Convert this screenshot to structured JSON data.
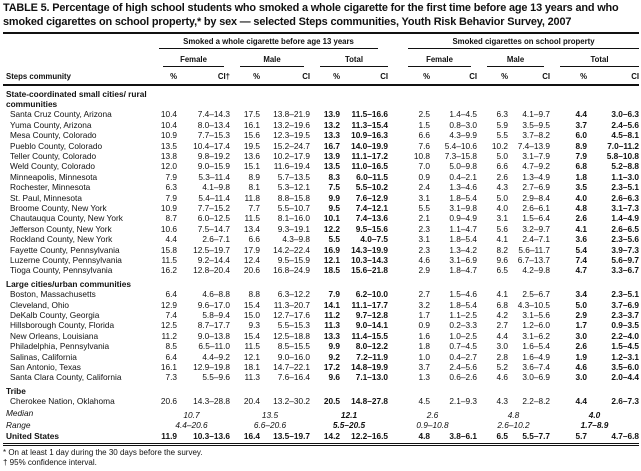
{
  "title": "TABLE 5. Percentage of high school students who smoked a whole cigarette for the first time before age 13 years and who smoked cigarettes on school property,* by sex — selected Steps communities, Youth Risk Behavior Survey, 2007",
  "header": {
    "groups": [
      "Smoked a whole cigarette before age 13 years",
      "Smoked cigarettes on school property"
    ],
    "sexes": [
      "Female",
      "Male",
      "Total",
      "Female",
      "Male",
      "Total"
    ],
    "row_label": "Steps community",
    "cols": [
      "%",
      "CI†",
      "%",
      "CI",
      "%",
      "CI",
      "%",
      "CI",
      "%",
      "CI",
      "%",
      "CI"
    ]
  },
  "sections": [
    {
      "label": "State-coordinated small cities/ rural communities",
      "rows": [
        {
          "name": "Santa Cruz County, Arizona",
          "v": [
            "10.4",
            "7.4–14.3",
            "17.5",
            "13.8–21.9",
            "13.9",
            "11.5–16.6",
            "2.5",
            "1.4–4.5",
            "6.3",
            "4.1–9.7",
            "4.4",
            "3.0–6.3"
          ]
        },
        {
          "name": "Yuma County, Arizona",
          "v": [
            "10.4",
            "8.0–13.4",
            "16.1",
            "13.2–19.6",
            "13.2",
            "11.3–15.4",
            "1.5",
            "0.8–3.0",
            "5.9",
            "3.5–9.5",
            "3.7",
            "2.4–5.6"
          ]
        },
        {
          "name": "Mesa County, Colorado",
          "v": [
            "10.9",
            "7.7–15.3",
            "15.6",
            "12.3–19.5",
            "13.3",
            "10.9–16.3",
            "6.6",
            "4.3–9.9",
            "5.5",
            "3.7–8.2",
            "6.0",
            "4.5–8.1"
          ]
        },
        {
          "name": "Pueblo County, Colorado",
          "v": [
            "13.5",
            "10.4–17.4",
            "19.5",
            "15.2–24.7",
            "16.7",
            "14.0–19.9",
            "7.6",
            "5.4–10.6",
            "10.2",
            "7.4–13.9",
            "8.9",
            "7.0–11.2"
          ]
        },
        {
          "name": "Teller County, Colorado",
          "v": [
            "13.8",
            "9.8–19.2",
            "13.6",
            "10.2–17.9",
            "13.9",
            "11.1–17.2",
            "10.8",
            "7.3–15.8",
            "5.0",
            "3.1–7.9",
            "7.9",
            "5.8–10.8"
          ]
        },
        {
          "name": "Weld County, Colorado",
          "v": [
            "12.0",
            "9.0–15.9",
            "15.1",
            "11.6–19.4",
            "13.5",
            "11.0–16.5",
            "7.0",
            "5.0–9.8",
            "6.6",
            "4.7–9.2",
            "6.8",
            "5.2–8.8"
          ]
        },
        {
          "name": "Minneapolis, Minnesota",
          "v": [
            "7.9",
            "5.3–11.4",
            "8.9",
            "5.7–13.5",
            "8.3",
            "6.0–11.5",
            "0.9",
            "0.4–2.1",
            "2.6",
            "1.3–4.9",
            "1.8",
            "1.1–3.0"
          ]
        },
        {
          "name": "Rochester, Minnesota",
          "v": [
            "6.3",
            "4.1–9.8",
            "8.1",
            "5.3–12.1",
            "7.5",
            "5.5–10.2",
            "2.4",
            "1.3–4.6",
            "4.3",
            "2.7–6.9",
            "3.5",
            "2.3–5.1"
          ]
        },
        {
          "name": "St. Paul, Minnesota",
          "v": [
            "7.9",
            "5.4–11.4",
            "11.8",
            "8.8–15.8",
            "9.9",
            "7.6–12.9",
            "3.1",
            "1.8–5.4",
            "5.0",
            "2.9–8.4",
            "4.0",
            "2.6–6.3"
          ]
        },
        {
          "name": "Broome County, New York",
          "v": [
            "10.9",
            "7.7–15.2",
            "7.7",
            "5.5–10.7",
            "9.5",
            "7.4–12.1",
            "5.5",
            "3.1–9.8",
            "4.0",
            "2.6–6.1",
            "4.8",
            "3.1–7.3"
          ]
        },
        {
          "name": "Chautauqua County, New York",
          "v": [
            "8.7",
            "6.0–12.5",
            "11.5",
            "8.1–16.0",
            "10.1",
            "7.4–13.6",
            "2.1",
            "0.9–4.9",
            "3.1",
            "1.5–6.4",
            "2.6",
            "1.4–4.9"
          ]
        },
        {
          "name": "Jefferson County, New York",
          "v": [
            "10.6",
            "7.5–14.7",
            "13.4",
            "9.3–19.1",
            "12.2",
            "9.5–15.6",
            "2.3",
            "1.1–4.7",
            "5.6",
            "3.2–9.7",
            "4.1",
            "2.6–6.5"
          ]
        },
        {
          "name": "Rockland County, New York",
          "v": [
            "4.4",
            "2.6–7.1",
            "6.6",
            "4.3–9.8",
            "5.5",
            "4.0–7.5",
            "3.1",
            "1.8–5.4",
            "4.1",
            "2.4–7.1",
            "3.6",
            "2.3–5.6"
          ]
        },
        {
          "name": "Fayette County, Pennsylvania",
          "v": [
            "15.8",
            "12.5–19.7",
            "17.9",
            "14.2–22.4",
            "16.9",
            "14.3–19.9",
            "2.3",
            "1.3–4.2",
            "8.2",
            "5.6–11.7",
            "5.4",
            "3.9–7.3"
          ]
        },
        {
          "name": "Luzerne County, Pennsylvania",
          "v": [
            "11.5",
            "9.2–14.4",
            "12.4",
            "9.5–15.9",
            "12.1",
            "10.3–14.3",
            "4.6",
            "3.1–6.9",
            "9.6",
            "6.7–13.7",
            "7.4",
            "5.6–9.7"
          ]
        },
        {
          "name": "Tioga County, Pennsylvania",
          "v": [
            "16.2",
            "12.8–20.4",
            "20.6",
            "16.8–24.9",
            "18.5",
            "15.6–21.8",
            "2.9",
            "1.8–4.7",
            "6.5",
            "4.2–9.8",
            "4.7",
            "3.3–6.7"
          ]
        }
      ]
    },
    {
      "label": "Large cities/urban communities",
      "rows": [
        {
          "name": "Boston, Massachusetts",
          "v": [
            "6.4",
            "4.6–8.8",
            "8.8",
            "6.3–12.2",
            "7.9",
            "6.2–10.0",
            "2.7",
            "1.5–4.6",
            "4.1",
            "2.5–6.7",
            "3.4",
            "2.3–5.1"
          ]
        },
        {
          "name": "Cleveland, Ohio",
          "v": [
            "12.9",
            "9.6–17.0",
            "15.4",
            "11.3–20.7",
            "14.1",
            "11.1–17.7",
            "3.2",
            "1.8–5.4",
            "6.8",
            "4.3–10.5",
            "5.0",
            "3.7–6.9"
          ]
        },
        {
          "name": "DeKalb County, Georgia",
          "v": [
            "7.4",
            "5.8–9.4",
            "15.0",
            "12.7–17.6",
            "11.2",
            "9.7–12.8",
            "1.7",
            "1.1–2.5",
            "4.2",
            "3.1–5.6",
            "2.9",
            "2.3–3.7"
          ]
        },
        {
          "name": "Hillsborough County, Florida",
          "v": [
            "12.5",
            "8.7–17.7",
            "9.3",
            "5.5–15.3",
            "11.3",
            "9.0–14.1",
            "0.9",
            "0.2–3.3",
            "2.7",
            "1.2–6.0",
            "1.7",
            "0.9–3.5"
          ]
        },
        {
          "name": "New Orleans, Louisiana",
          "v": [
            "11.2",
            "9.0–13.8",
            "15.4",
            "12.5–18.8",
            "13.3",
            "11.4–15.5",
            "1.6",
            "1.0–2.5",
            "4.4",
            "3.1–6.2",
            "3.0",
            "2.2–4.0"
          ]
        },
        {
          "name": "Philadelphia, Pennsylvania",
          "v": [
            "8.5",
            "6.5–11.0",
            "11.5",
            "8.5–15.5",
            "9.9",
            "8.0–12.2",
            "1.8",
            "0.7–4.5",
            "3.0",
            "1.6–5.4",
            "2.6",
            "1.5–4.5"
          ]
        },
        {
          "name": "Salinas, California",
          "v": [
            "6.4",
            "4.4–9.2",
            "12.1",
            "9.0–16.0",
            "9.2",
            "7.2–11.9",
            "1.0",
            "0.4–2.7",
            "2.8",
            "1.6–4.9",
            "1.9",
            "1.2–3.1"
          ]
        },
        {
          "name": "San Antonio, Texas",
          "v": [
            "16.1",
            "12.9–19.8",
            "18.1",
            "14.7–22.1",
            "17.2",
            "14.8–19.9",
            "3.7",
            "2.4–5.6",
            "5.2",
            "3.6–7.4",
            "4.6",
            "3.5–6.0"
          ]
        },
        {
          "name": "Santa Clara County, California",
          "v": [
            "7.3",
            "5.5–9.6",
            "11.3",
            "7.6–16.4",
            "9.6",
            "7.1–13.0",
            "1.3",
            "0.6–2.6",
            "4.6",
            "3.0–6.9",
            "3.0",
            "2.0–4.4"
          ]
        }
      ]
    },
    {
      "label": "Tribe",
      "rows": [
        {
          "name": "Cherokee Nation, Oklahoma",
          "v": [
            "20.6",
            "14.3–28.8",
            "20.4",
            "13.2–30.2",
            "20.5",
            "14.8–27.8",
            "4.5",
            "2.1–9.3",
            "4.3",
            "2.2–8.2",
            "4.4",
            "2.6–7.3"
          ]
        }
      ]
    }
  ],
  "median": {
    "label": "Median",
    "v": [
      "10.7",
      "13.5",
      "12.1",
      "2.6",
      "4.8",
      "4.0"
    ]
  },
  "range": {
    "label": "Range",
    "v": [
      "4.4–20.6",
      "6.6–20.6",
      "5.5–20.5",
      "0.9–10.8",
      "2.6–10.2",
      "1.7–8.9"
    ]
  },
  "us": {
    "name": "United States",
    "v": [
      "11.9",
      "10.3–13.6",
      "16.4",
      "13.5–19.7",
      "14.2",
      "12.2–16.5",
      "4.8",
      "3.8–6.1",
      "6.5",
      "5.5–7.7",
      "5.7",
      "4.7–6.8"
    ]
  },
  "footnotes": [
    "* On at least 1 day during the 30 days before the survey.",
    "† 95% confidence interval."
  ]
}
